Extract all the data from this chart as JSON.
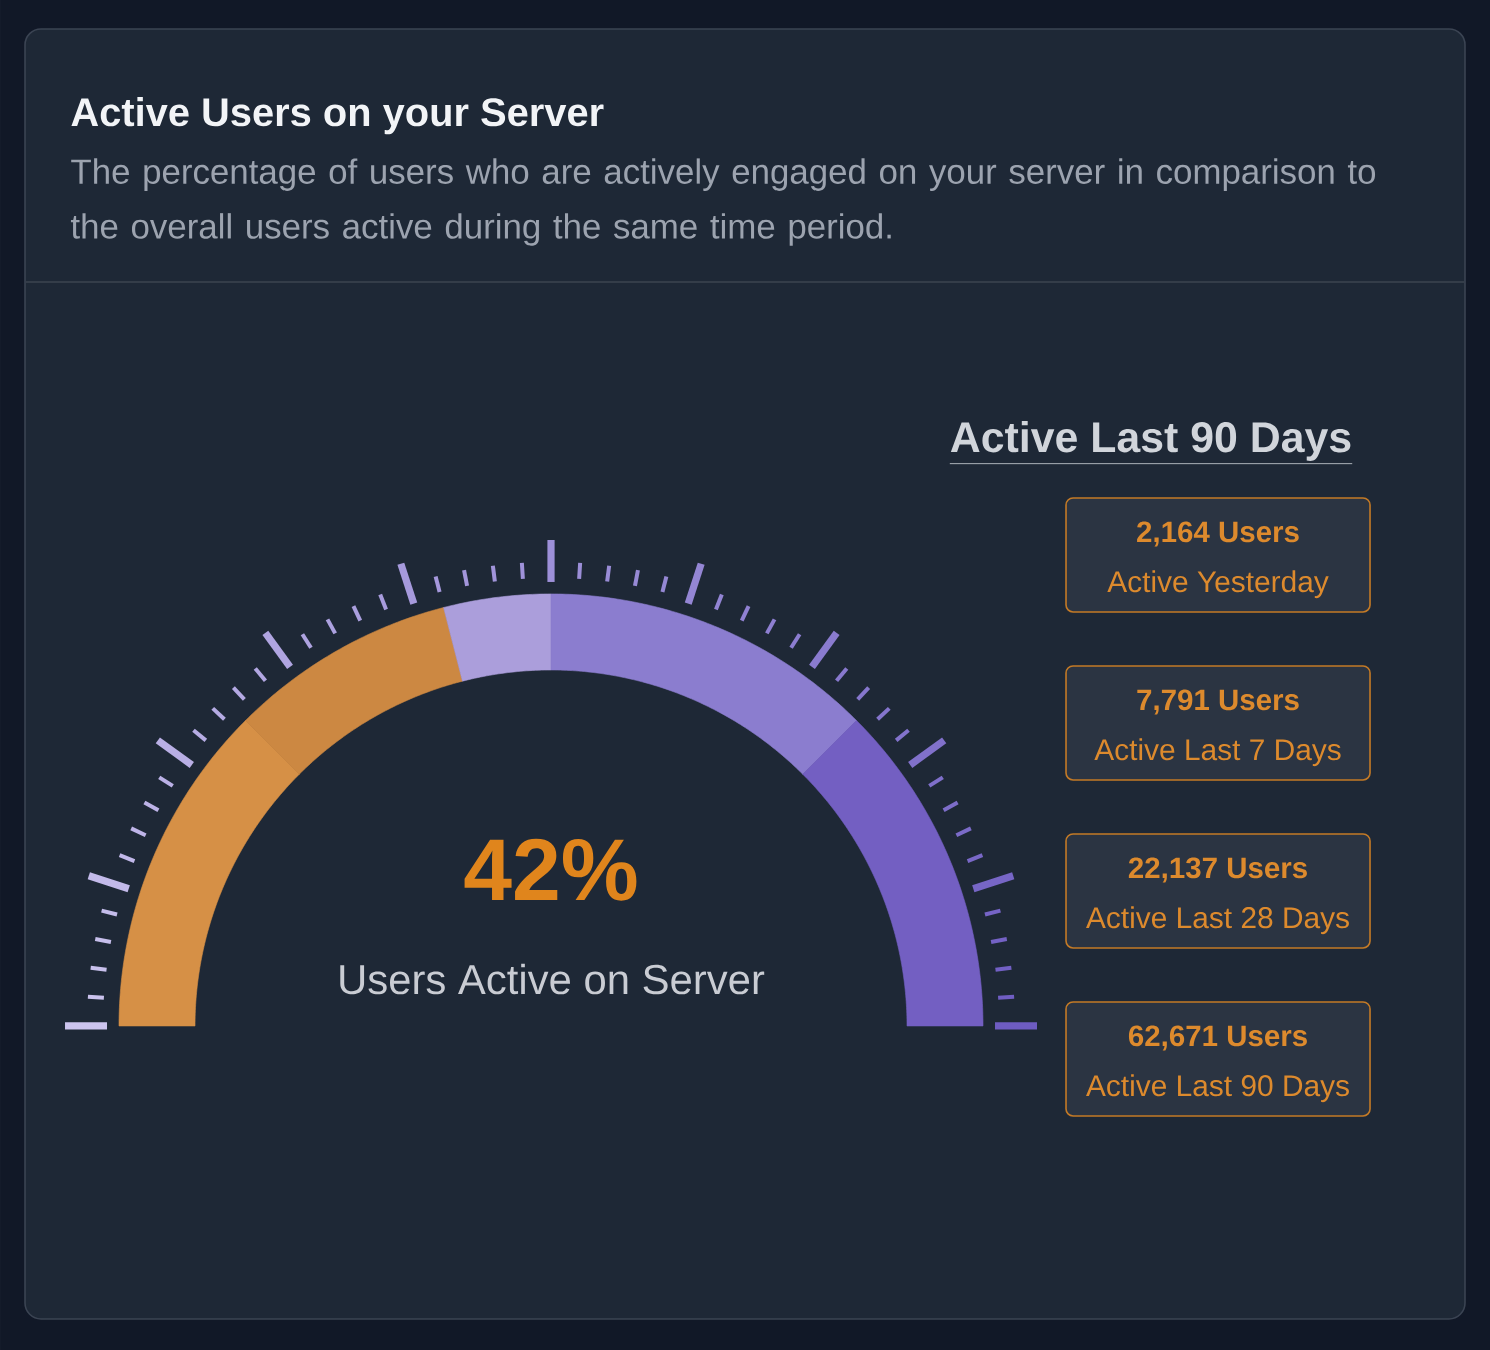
{
  "chart_data": [
    {
      "type": "donut",
      "title": "Active Users on your Server",
      "subtitle": "The percentage of users who are actively engaged on your server in comparison to the overall users active during the same time period.",
      "categories": [
        null,
        null,
        null,
        null,
        null
      ],
      "values": [
        25,
        17,
        8,
        25,
        25
      ],
      "colors": [
        "#d69046",
        "#cc8842",
        "#ab9edb",
        "#8b7dcf",
        "#735fc2"
      ],
      "annotations": [
        "42%",
        "Users Active on Server"
      ]
    },
    {
      "type": "other",
      "title": "Active Last 90 Days",
      "annotations": [
        "2,164 Users",
        "Active Yesterday",
        "7,791 Users",
        "Active Last 7 Days",
        "22,137 Users",
        "Active Last 28 Days",
        "62,671 Users",
        "Active Last 90 Days"
      ]
    }
  ]
}
